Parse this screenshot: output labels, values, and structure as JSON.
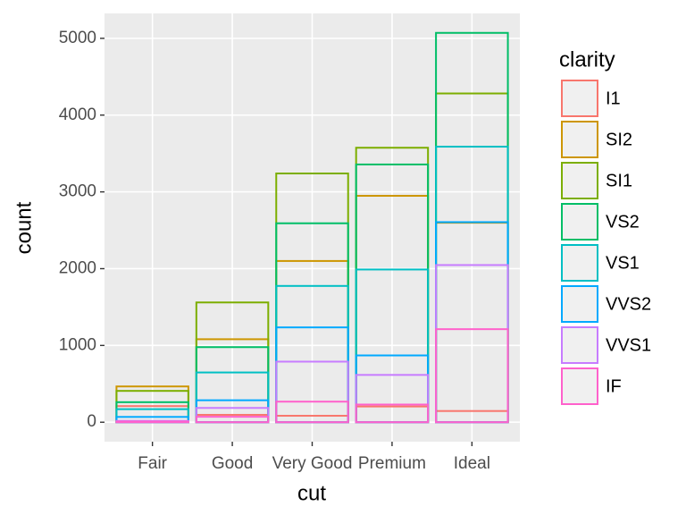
{
  "chart_data": {
    "type": "bar",
    "position": "identity",
    "x_label": "cut",
    "y_label": "count",
    "categories": [
      "Fair",
      "Good",
      "Very Good",
      "Premium",
      "Ideal"
    ],
    "legend_title": "clarity",
    "legend_position": "right",
    "grid": true,
    "ylim": [
      -253.55,
      5324.55
    ],
    "yticks": [
      0,
      1000,
      2000,
      3000,
      4000,
      5000
    ],
    "series": [
      {
        "name": "I1",
        "color": "#F8766D",
        "values": [
          210,
          96,
          84,
          205,
          146
        ]
      },
      {
        "name": "SI2",
        "color": "#CD9600",
        "values": [
          466,
          1081,
          2100,
          2949,
          2598
        ]
      },
      {
        "name": "SI1",
        "color": "#7CAE00",
        "values": [
          408,
          1560,
          3240,
          3575,
          4282
        ]
      },
      {
        "name": "VS2",
        "color": "#00BE67",
        "values": [
          261,
          978,
          2591,
          3357,
          5071
        ]
      },
      {
        "name": "VS1",
        "color": "#00BFC4",
        "values": [
          170,
          648,
          1775,
          1989,
          3589
        ]
      },
      {
        "name": "VVS2",
        "color": "#00A9FF",
        "values": [
          69,
          286,
          1235,
          870,
          2606
        ]
      },
      {
        "name": "VVS1",
        "color": "#C77CFF",
        "values": [
          17,
          186,
          789,
          616,
          2047
        ]
      },
      {
        "name": "IF",
        "color": "#FF61CC",
        "values": [
          9,
          71,
          268,
          230,
          1212
        ]
      }
    ]
  }
}
